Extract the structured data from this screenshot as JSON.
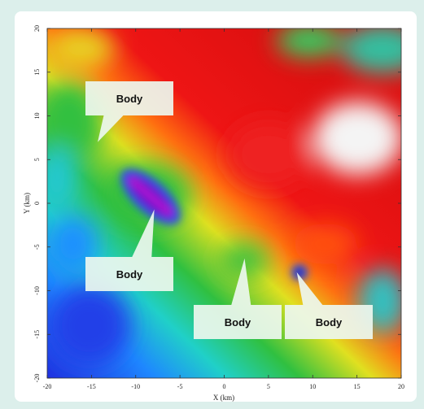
{
  "chart_data": {
    "type": "image-map",
    "xlabel": "X (km)",
    "ylabel": "Y (km)",
    "xlim": [
      -20,
      20
    ],
    "ylim": [
      -20,
      20
    ],
    "xticks": [
      -20,
      -15,
      -10,
      -5,
      0,
      5,
      10,
      15,
      20
    ],
    "yticks": [
      -20,
      -15,
      -10,
      -5,
      0,
      5,
      10,
      15,
      20
    ],
    "annotations": [
      {
        "text": "Body",
        "x": -14.3,
        "y": 7.0
      },
      {
        "text": "Body",
        "x": -7.9,
        "y": -0.7
      },
      {
        "text": "Body",
        "x": 2.3,
        "y": -6.3
      },
      {
        "text": "Body",
        "x": 8.2,
        "y": -7.9
      }
    ]
  }
}
